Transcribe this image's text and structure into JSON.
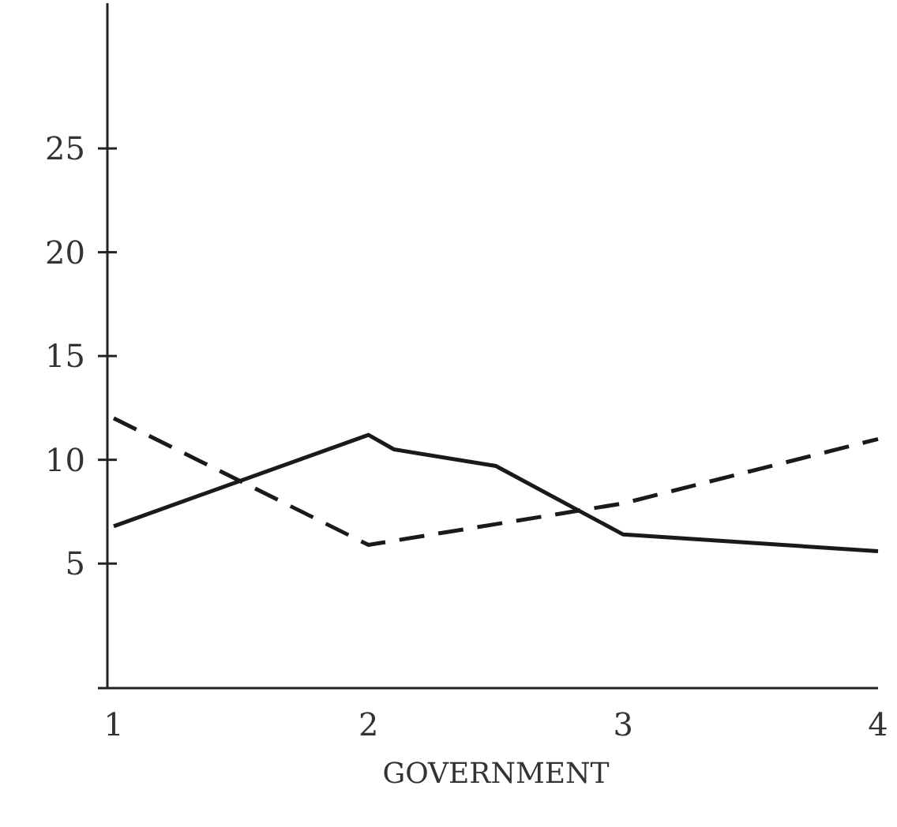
{
  "chart_data": {
    "type": "line",
    "xlabel": "GOVERNMENT",
    "xlim": [
      1,
      4
    ],
    "xticks": [
      1,
      2,
      3,
      4
    ],
    "ylim": [
      -1,
      32
    ],
    "yticks": [
      5,
      10,
      15,
      20,
      25
    ],
    "grid": false,
    "marker": "none",
    "series": [
      {
        "color": "#1a1a1a",
        "line_style": "solid",
        "x": [
          1,
          2,
          2.1,
          2.5,
          3,
          4
        ],
        "values": [
          6.8,
          11.2,
          10.5,
          9.7,
          6.4,
          5.6
        ]
      },
      {
        "color": "#1a1a1a",
        "line_style": "dashed",
        "x": [
          1,
          2,
          3,
          4
        ],
        "values": [
          12.0,
          5.9,
          7.9,
          11.0
        ]
      }
    ]
  }
}
